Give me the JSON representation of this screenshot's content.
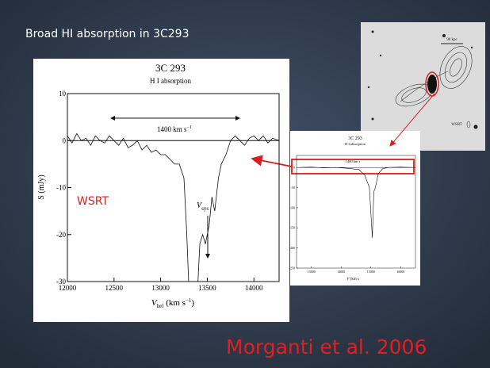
{
  "slide_title": "Broad HI absorption in 3C293",
  "citation": "Morganti et al. 2006",
  "radio_image": {
    "scale_label": "90 kpc",
    "telescope_label": "WSRT"
  },
  "main_plot": {
    "type": "line",
    "title": "3C 293",
    "subtitle": "H I absorption",
    "y_label": "S (mJy)",
    "x_label": {
      "symbol": "V",
      "subscript": "hel",
      "unit": "(km s",
      "exponent": "−1",
      "close": ")"
    },
    "width_label": {
      "text": "1400 km s",
      "exponent": "−1"
    },
    "telescope": "WSRT",
    "vsys_label": {
      "symbol": "V",
      "subscript": "sys"
    },
    "xlim": [
      12000,
      14270
    ],
    "ylim": [
      -30,
      10
    ],
    "xticks": [
      12000,
      12500,
      13000,
      13500,
      14000
    ],
    "yticks": [
      10,
      0,
      -10,
      -20,
      -30
    ],
    "x": [
      12000,
      12050,
      12100,
      12150,
      12200,
      12250,
      12300,
      12350,
      12400,
      12450,
      12500,
      12550,
      12600,
      12650,
      12700,
      12750,
      12800,
      12850,
      12900,
      12950,
      13000,
      13050,
      13100,
      13150,
      13200,
      13250,
      13280,
      13300,
      13350,
      13400,
      13420,
      13450,
      13480,
      13520,
      13550,
      13580,
      13620,
      13650,
      13700,
      13750,
      13800,
      13850,
      13900,
      13950,
      14000,
      14050,
      14100,
      14150,
      14200,
      14270
    ],
    "values": [
      1,
      -0.5,
      1.5,
      0,
      0.5,
      -1,
      1,
      0,
      -0.5,
      1,
      0,
      -1,
      0.5,
      -1.5,
      -1,
      0,
      -2,
      -1,
      -2.5,
      -2,
      -3,
      -3,
      -4,
      -5,
      -5,
      -8,
      -20,
      -30,
      -30,
      -30,
      -22,
      -20,
      -22,
      -18,
      -12,
      -15,
      -8,
      -5,
      -3,
      0,
      1,
      0,
      -1,
      0.5,
      1,
      0,
      1,
      -0.5,
      0.5,
      0
    ]
  },
  "inset_plot": {
    "type": "line",
    "title": "3C 293",
    "subtitle": "H I absorption",
    "width_label": "1400 km s",
    "x_label": "V",
    "x_label_rest": "(km s",
    "xlim": [
      12500,
      16500
    ],
    "ylim": [
      -250,
      30
    ],
    "xticks": [
      13000,
      14000,
      15000,
      16000
    ],
    "yticks": [
      0,
      -50,
      -100,
      -150,
      -200,
      -250
    ],
    "x": [
      12600,
      13000,
      13400,
      13800,
      14200,
      14600,
      14800,
      14950,
      15050,
      15100,
      15150,
      15250,
      15400,
      15600,
      16000,
      16400
    ],
    "values": [
      0,
      1,
      -1,
      0,
      -2,
      -5,
      -20,
      -50,
      -175,
      -60,
      -50,
      -15,
      -3,
      0,
      1,
      0
    ]
  }
}
